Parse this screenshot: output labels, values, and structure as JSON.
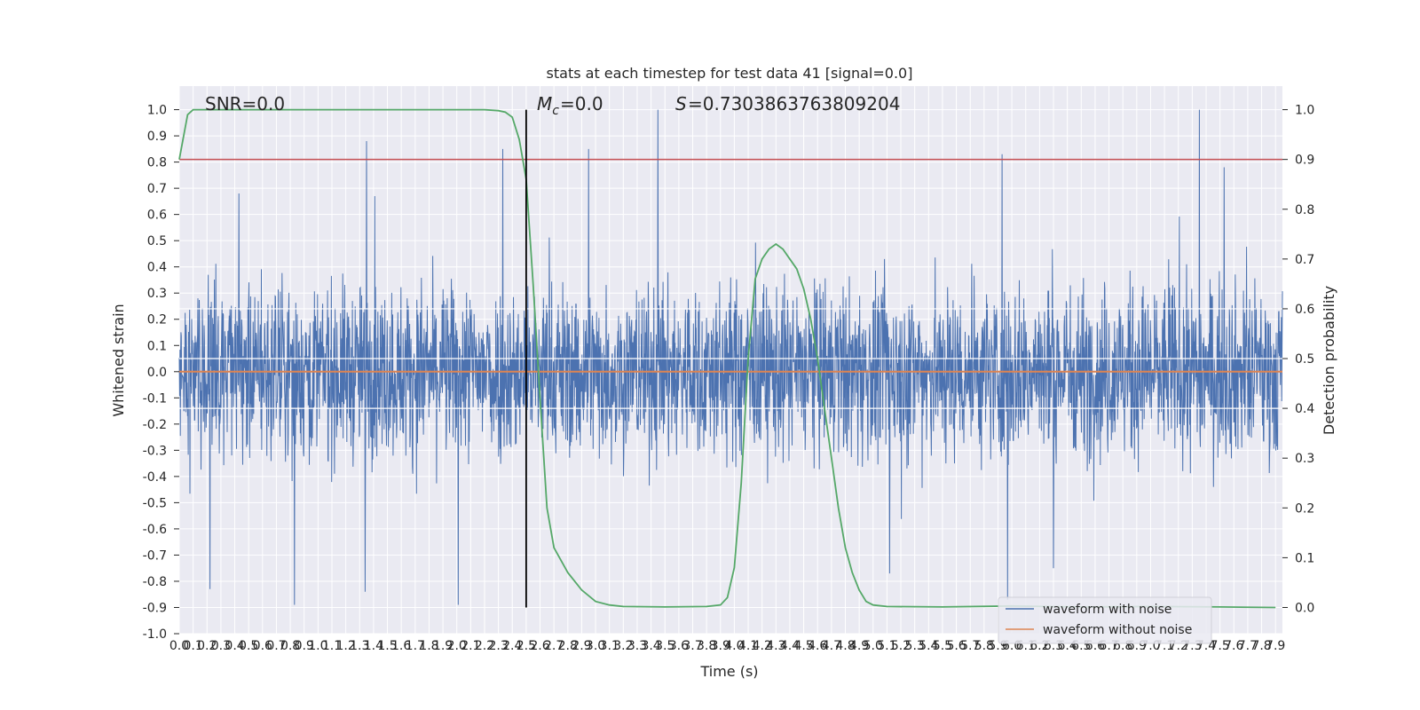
{
  "chart_data": {
    "type": "line",
    "title": "stats at each timestep for test data 41 [signal=0.0]",
    "xlabel": "Time (s)",
    "ylabel": "Whitened strain",
    "ylabel_right": "Detection probability",
    "xlim": [
      0.0,
      7.95
    ],
    "ylim": [
      -1.0,
      1.09
    ],
    "ylim_right": [
      0.0,
      1.0
    ],
    "x_ticks": [
      0.0,
      0.1,
      0.2,
      0.3,
      0.4,
      0.5,
      0.6,
      0.7,
      0.8,
      0.9,
      1.0,
      1.1,
      1.2,
      1.3,
      1.4,
      1.5,
      1.6,
      1.7,
      1.8,
      1.9,
      2.0,
      2.1,
      2.2,
      2.3,
      2.4,
      2.5,
      2.6,
      2.7,
      2.8,
      2.9,
      3.0,
      3.1,
      3.2,
      3.3,
      3.4,
      3.5,
      3.6,
      3.7,
      3.8,
      3.9,
      4.0,
      4.1,
      4.2,
      4.3,
      4.4,
      4.5,
      4.6,
      4.7,
      4.8,
      4.9,
      5.0,
      5.1,
      5.2,
      5.3,
      5.4,
      5.5,
      5.6,
      5.7,
      5.8,
      5.9,
      6.0,
      6.1,
      6.2,
      6.3,
      6.4,
      6.5,
      6.6,
      6.7,
      6.8,
      6.9,
      7.0,
      7.1,
      7.2,
      7.3,
      7.4,
      7.5,
      7.6,
      7.7,
      7.8,
      7.9
    ],
    "y_ticks": [
      -1.0,
      -0.9,
      -0.8,
      -0.7,
      -0.6,
      -0.5,
      -0.4,
      -0.3,
      -0.2,
      -0.1,
      0.0,
      0.1,
      0.2,
      0.3,
      0.4,
      0.5,
      0.6,
      0.7,
      0.8,
      0.9,
      1.0
    ],
    "y_ticks_right": [
      0.0,
      0.1,
      0.2,
      0.3,
      0.4,
      0.5,
      0.6,
      0.7,
      0.8,
      0.9,
      1.0
    ],
    "grid": true,
    "legend_position": "lower-right",
    "series": [
      {
        "name": "waveform with noise",
        "color": "#4c72b0",
        "axis": "left",
        "description": "dense noise from t=0 to 7.95 s, typical envelope about +0.45 / -0.45",
        "peaks": [
          {
            "x": 1.35,
            "y": 0.88
          },
          {
            "x": 2.33,
            "y": 0.85
          },
          {
            "x": 2.95,
            "y": 0.85
          },
          {
            "x": 3.45,
            "y": 1.0
          },
          {
            "x": 5.93,
            "y": 0.83
          },
          {
            "x": 7.35,
            "y": 1.0
          },
          {
            "x": 7.53,
            "y": 0.78
          },
          {
            "x": 0.43,
            "y": 0.68
          },
          {
            "x": 1.41,
            "y": 0.67
          },
          {
            "x": 0.83,
            "y": -0.89
          },
          {
            "x": 2.01,
            "y": -0.89
          },
          {
            "x": 0.22,
            "y": -0.83
          },
          {
            "x": 1.34,
            "y": -0.84
          },
          {
            "x": 5.97,
            "y": -0.87
          },
          {
            "x": 5.12,
            "y": -0.77
          },
          {
            "x": 6.3,
            "y": -0.75
          }
        ]
      },
      {
        "name": "waveform without noise",
        "color": "#dd8452",
        "axis": "left",
        "x": [
          0.0,
          7.95
        ],
        "y": [
          0.0,
          0.0
        ]
      },
      {
        "name": "",
        "color": "#55a868",
        "axis": "right",
        "x": [
          0.0,
          0.06,
          0.1,
          0.2,
          0.5,
          1.0,
          1.5,
          2.0,
          2.2,
          2.3,
          2.35,
          2.4,
          2.45,
          2.5,
          2.55,
          2.6,
          2.65,
          2.7,
          2.8,
          2.9,
          3.0,
          3.1,
          3.2,
          3.5,
          3.8,
          3.9,
          3.95,
          4.0,
          4.05,
          4.1,
          4.15,
          4.2,
          4.25,
          4.3,
          4.35,
          4.4,
          4.45,
          4.5,
          4.55,
          4.6,
          4.65,
          4.7,
          4.75,
          4.8,
          4.85,
          4.9,
          4.95,
          5.0,
          5.1,
          5.5,
          6.0,
          6.5,
          7.0,
          7.5,
          7.9
        ],
        "y": [
          0.9,
          0.99,
          1.0,
          1.0,
          1.0,
          1.0,
          1.0,
          1.0,
          1.0,
          0.998,
          0.995,
          0.985,
          0.94,
          0.86,
          0.65,
          0.42,
          0.2,
          0.12,
          0.07,
          0.035,
          0.012,
          0.005,
          0.002,
          0.001,
          0.002,
          0.005,
          0.02,
          0.08,
          0.25,
          0.5,
          0.66,
          0.7,
          0.72,
          0.73,
          0.72,
          0.7,
          0.68,
          0.64,
          0.58,
          0.5,
          0.4,
          0.3,
          0.2,
          0.12,
          0.07,
          0.035,
          0.012,
          0.005,
          0.002,
          0.001,
          0.003,
          0.001,
          0.002,
          0.001,
          0.0
        ]
      },
      {
        "name": "",
        "color": "#c44e52",
        "axis": "right",
        "x": [
          0.0,
          7.95
        ],
        "y": [
          0.9,
          0.9
        ]
      }
    ],
    "vertical_line": {
      "x": 2.5,
      "y0": -0.9,
      "y1": 1.0,
      "color": "#000000"
    },
    "annotations": {
      "snr": "SNR=0.0",
      "mc": "=0.0",
      "s": "=0.7303863763809204"
    }
  }
}
